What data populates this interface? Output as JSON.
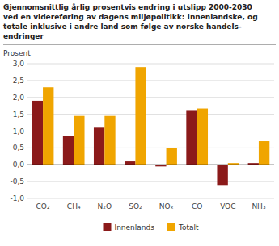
{
  "chart_data": {
    "type": "bar",
    "title": "Gjennomsnittlig årlig prosentvis endring i utslipp 2000-2030\nved en videreføring av dagens miljøpolitikk: Innenlandske, og\ntotale inklusive i andre land som følge av norske handels-\nendringer",
    "y_label": "Prosent",
    "categories": [
      "CO₂",
      "CH₄",
      "N₂O",
      "SO₂",
      "NOₓ",
      "CO",
      "VOC",
      "NH₃"
    ],
    "series": [
      {
        "name": "Innenlands",
        "color": "#8B1A1A",
        "values": [
          1.9,
          0.85,
          1.1,
          0.1,
          -0.05,
          1.6,
          -0.6,
          0.05
        ]
      },
      {
        "name": "Totalt",
        "color": "#F0A500",
        "values": [
          2.3,
          1.45,
          1.45,
          2.9,
          0.5,
          1.67,
          0.05,
          0.7
        ]
      }
    ],
    "ylim": [
      -1.0,
      3.0
    ],
    "yticks": [
      {
        "value": -1.0,
        "label": "-1,0"
      },
      {
        "value": -0.5,
        "label": "-0,5"
      },
      {
        "value": 0.0,
        "label": "0,0"
      },
      {
        "value": 0.5,
        "label": "0,5"
      },
      {
        "value": 1.0,
        "label": "1,0"
      },
      {
        "value": 1.5,
        "label": "1,5"
      },
      {
        "value": 2.0,
        "label": "2,0"
      },
      {
        "value": 2.5,
        "label": "2,5"
      },
      {
        "value": 3.0,
        "label": "3,0"
      }
    ],
    "grid": true,
    "legend": "bottom"
  }
}
